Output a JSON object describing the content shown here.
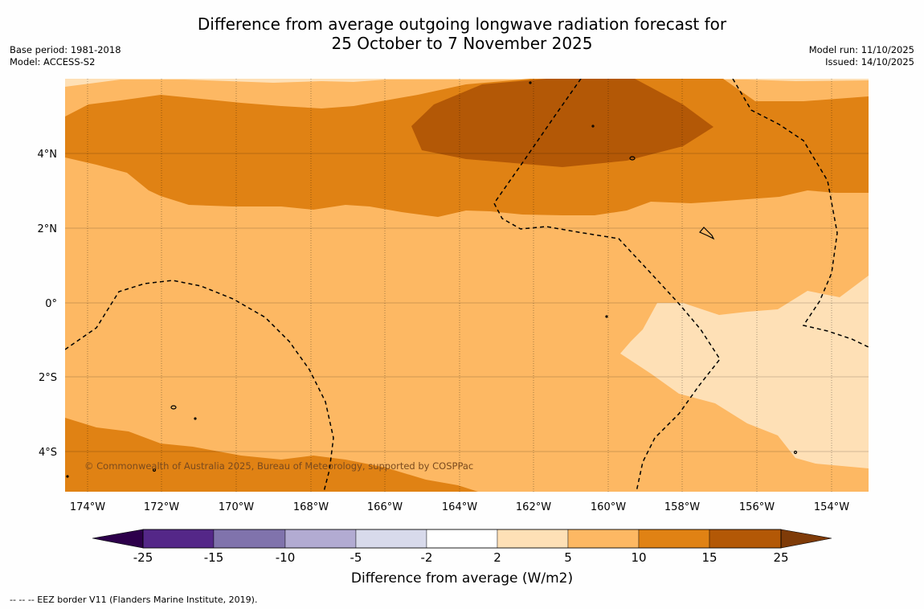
{
  "title": {
    "line1": "Difference from average outgoing longwave radiation forecast for",
    "line2": "25 October to 7 November 2025"
  },
  "meta_left": {
    "base_period": "Base period: 1981-2018",
    "model": "Model: ACCESS-S2"
  },
  "meta_right": {
    "model_run": "Model run: 11/10/2025",
    "issued": "Issued: 14/10/2025"
  },
  "axes": {
    "lat_labels": [
      "4°N",
      "2°N",
      "0°",
      "2°S",
      "4°S"
    ],
    "lon_labels": [
      "174°W",
      "172°W",
      "170°W",
      "168°W",
      "166°W",
      "164°W",
      "162°W",
      "160°W",
      "158°W",
      "156°W",
      "154°W"
    ]
  },
  "credit": "© Commonwealth of Australia 2025, Bureau of Meteorology, supported by COSPPac",
  "colorbar": {
    "tick_labels": [
      "-25",
      "-15",
      "-10",
      "-5",
      "-2",
      "2",
      "5",
      "10",
      "15",
      "25"
    ],
    "colors": [
      "#2d004b",
      "#542788",
      "#8073ac",
      "#b2abd2",
      "#d8daeb",
      "#ffffff",
      "#fee0b6",
      "#fdb863",
      "#e08214",
      "#b35806",
      "#7f3b08"
    ],
    "label": "Difference from average (W/m2)"
  },
  "footnote": "--  --  -- EEZ border V11 (Flanders Marine Institute, 2019)."
}
